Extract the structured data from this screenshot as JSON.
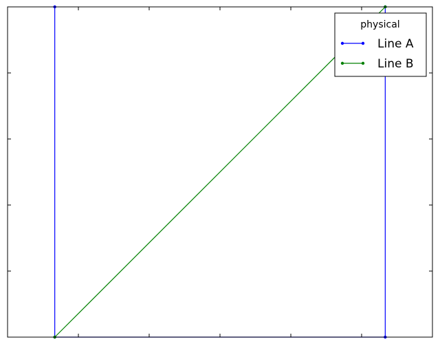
{
  "chart_data": {
    "type": "line",
    "xlim": [
      0,
      1
    ],
    "ylim": [
      0,
      1
    ],
    "x_ticks": [
      0,
      0.1667,
      0.3333,
      0.5,
      0.6667,
      0.8333,
      1
    ],
    "y_ticks": [
      0,
      0.2,
      0.4,
      0.6,
      0.8,
      1
    ],
    "tick_labels_visible": false,
    "grid": false,
    "series": [
      {
        "name": "Line A",
        "color": "#0000ff",
        "marker": "point",
        "points": [
          {
            "x": 0.1111,
            "y": 1
          },
          {
            "x": 0.1111,
            "y": 0
          },
          {
            "x": 0.8889,
            "y": 0
          },
          {
            "x": 0.8889,
            "y": 1
          }
        ]
      },
      {
        "name": "Line B",
        "color": "#008000",
        "marker": "point",
        "points": [
          {
            "x": 0.1111,
            "y": 0
          },
          {
            "x": 0.8889,
            "y": 1
          }
        ]
      }
    ],
    "legend": {
      "title": "physical",
      "position": "top-right"
    }
  }
}
